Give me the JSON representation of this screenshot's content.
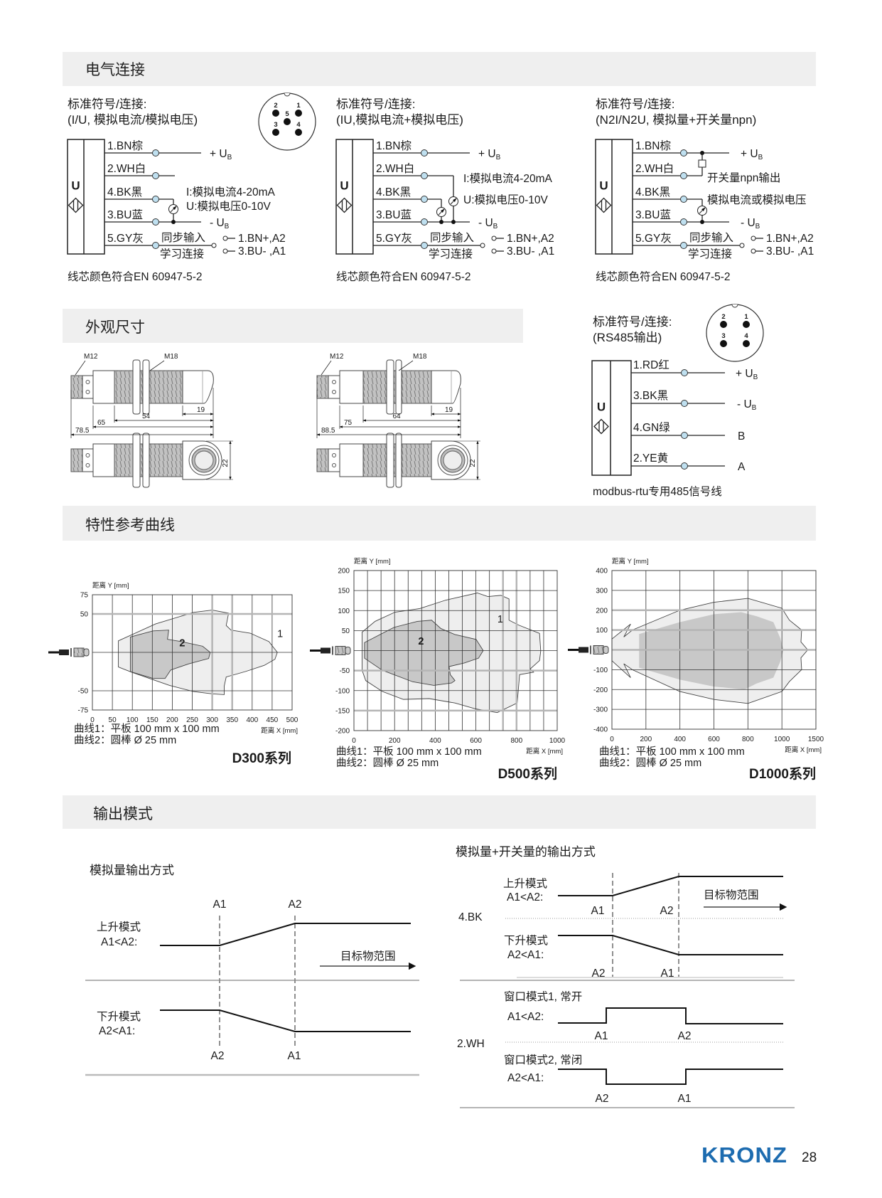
{
  "sections": {
    "electrical": "电气连接",
    "dimensions": "外观尺寸",
    "curves": "特性参考曲线",
    "output": "输出模式"
  },
  "ub": {
    "plus": "+ U",
    "minus": "- U",
    "sub": "B"
  },
  "wiring": [
    {
      "title1": "标准符号/连接:",
      "title2": "(I/U, 模拟电流/模拟电压)",
      "symbol": "U",
      "wires": [
        "1.BN棕",
        "2.WH白",
        "4.BK黑",
        "3.BU蓝",
        "5.GY灰"
      ],
      "notes": [
        "I:模拟电流4-20mA",
        "U:模拟电压0-10V"
      ],
      "sync": "同步输入",
      "teach": "学习连接",
      "teach_options": [
        "1.BN+,A2",
        "3.BU- ,A1"
      ],
      "footer": "线芯颜色符合EN 60947-5-2",
      "connector_pins": [
        "1",
        "2",
        "3",
        "4",
        "5"
      ]
    },
    {
      "title1": "标准符号/连接:",
      "title2": "(IU,模拟电流+模拟电压)",
      "symbol": "U",
      "wires": [
        "1.BN棕",
        "2.WH白",
        "4.BK黑",
        "3.BU蓝",
        "5.GY灰"
      ],
      "notes": [
        "I:模拟电流4-20mA",
        "U:模拟电压0-10V"
      ],
      "sync": "同步输入",
      "teach": "学习连接",
      "teach_options": [
        "1.BN+,A2",
        "3.BU- ,A1"
      ],
      "footer": "线芯颜色符合EN 60947-5-2"
    },
    {
      "title1": "标准符号/连接:",
      "title2": "(N2I/N2U, 模拟量+开关量npn)",
      "symbol": "U",
      "wires": [
        "1.BN棕",
        "2.WH白",
        "4.BK黑",
        "3.BU蓝",
        "5.GY灰"
      ],
      "notes": [
        "开关量npn输出",
        "模拟电流或模拟电压"
      ],
      "sync": "同步输入",
      "teach": "学习连接",
      "teach_options": [
        "1.BN+,A2",
        "3.BU- ,A1"
      ],
      "footer": "线芯颜色符合EN 60947-5-2"
    }
  ],
  "rs485": {
    "title1": "标准符号/连接:",
    "title2": "(RS485输出)",
    "symbol": "U",
    "wires": [
      "1.RD红",
      "3.BK黑",
      "4.GN绿",
      "2.YE黄"
    ],
    "ends": [
      "B",
      "A"
    ],
    "footer": "modbus-rtu专用485信号线",
    "connector_pins": [
      "1",
      "2",
      "3",
      "4"
    ]
  },
  "dimensions": [
    {
      "m12": "M12",
      "m18": "M18",
      "dims": [
        "19",
        "54",
        "65",
        "78.5"
      ],
      "width": "22"
    },
    {
      "m12": "M12",
      "m18": "M18",
      "dims": [
        "19",
        "64",
        "75",
        "88.5"
      ],
      "width": "22"
    }
  ],
  "chart_data": [
    {
      "type": "area",
      "title": "D300系列",
      "xlabel": "距离 X [mm]",
      "ylabel": "距离 Y [mm]",
      "xlim": [
        0,
        500
      ],
      "ylim": [
        -75,
        75
      ],
      "x_ticks": [
        0,
        50,
        100,
        150,
        200,
        250,
        300,
        350,
        400,
        450,
        500
      ],
      "y_ticks": [
        75,
        50,
        -50,
        -75
      ],
      "grid": true,
      "notes": [
        "曲线1：平板 100 mm x 100 mm",
        "曲线2：圆棒 Ø 25 mm"
      ],
      "series": [
        {
          "name": "1",
          "points": [
            [
              65,
              15
            ],
            [
              158,
              37
            ],
            [
              253,
              52
            ],
            [
              300,
              55
            ],
            [
              341,
              51
            ],
            [
              335,
              35
            ],
            [
              347,
              29
            ],
            [
              395,
              25
            ],
            [
              442,
              14
            ],
            [
              463,
              0
            ],
            [
              457,
              -9
            ],
            [
              430,
              -17
            ],
            [
              383,
              -25
            ],
            [
              335,
              -32
            ],
            [
              330,
              -44
            ],
            [
              330,
              -55
            ],
            [
              300,
              -54
            ],
            [
              253,
              -51
            ],
            [
              193,
              -43
            ],
            [
              99,
              -26
            ],
            [
              65,
              -19
            ]
          ]
        },
        {
          "name": "2",
          "points": [
            [
              95,
              20
            ],
            [
              152,
              28
            ],
            [
              191,
              29
            ],
            [
              188,
              17
            ],
            [
              223,
              14
            ],
            [
              276,
              8
            ],
            [
              295,
              0
            ],
            [
              291,
              -8
            ],
            [
              241,
              -15
            ],
            [
              196,
              -23
            ],
            [
              182,
              -34
            ],
            [
              152,
              -34
            ],
            [
              95,
              -25
            ]
          ]
        }
      ]
    },
    {
      "type": "area",
      "title": "D500系列",
      "xlabel": "距离 X [mm]",
      "ylabel": "距离 Y [mm]",
      "xlim": [
        0,
        1000
      ],
      "ylim": [
        -200,
        200
      ],
      "x_ticks": [
        0,
        200,
        400,
        600,
        800,
        1000
      ],
      "y_ticks": [
        200,
        150,
        100,
        50,
        -50,
        -100,
        -150,
        -200
      ],
      "grid": true,
      "notes": [
        "曲线1：平板 100 mm x 100 mm",
        "曲线2：圆棒 Ø 25 mm"
      ],
      "series": [
        {
          "name": "1",
          "points": [
            [
              40,
              46
            ],
            [
              104,
              73
            ],
            [
              202,
              96
            ],
            [
              324,
              105
            ],
            [
              451,
              126
            ],
            [
              607,
              144
            ],
            [
              659,
              135
            ],
            [
              723,
              138
            ],
            [
              763,
              129
            ],
            [
              763,
              76
            ],
            [
              809,
              64
            ],
            [
              913,
              43
            ],
            [
              919,
              -1
            ],
            [
              913,
              -25
            ],
            [
              867,
              -46
            ],
            [
              884,
              -54
            ],
            [
              815,
              -60
            ],
            [
              809,
              -96
            ],
            [
              803,
              -131
            ],
            [
              705,
              -155
            ],
            [
              601,
              -146
            ],
            [
              497,
              -131
            ],
            [
              370,
              -120
            ],
            [
              243,
              -122
            ],
            [
              139,
              -102
            ],
            [
              58,
              -75
            ],
            [
              40,
              -49
            ]
          ]
        },
        {
          "name": "2",
          "points": [
            [
              52,
              20
            ],
            [
              197,
              58
            ],
            [
              312,
              73
            ],
            [
              382,
              76
            ],
            [
              428,
              55
            ],
            [
              497,
              40
            ],
            [
              601,
              28
            ],
            [
              636,
              0
            ],
            [
              613,
              -19
            ],
            [
              543,
              -31
            ],
            [
              468,
              -40
            ],
            [
              474,
              -60
            ],
            [
              497,
              -75
            ],
            [
              480,
              -81
            ],
            [
              393,
              -87
            ],
            [
              289,
              -78
            ],
            [
              139,
              -49
            ],
            [
              52,
              -19
            ]
          ]
        }
      ]
    },
    {
      "type": "area",
      "title": "D1000系列",
      "xlabel": "距离 X [mm]",
      "ylabel": "距离 Y [mm]",
      "xlim": [
        0,
        1500
      ],
      "ylim": [
        -400,
        400
      ],
      "x_ticks": [
        0,
        200,
        400,
        600,
        800,
        1000,
        1500
      ],
      "y_ticks": [
        400,
        300,
        200,
        100,
        -100,
        -200,
        -300,
        -400
      ],
      "grid": true,
      "notes": [
        "曲线1：平板 100 mm x 100 mm",
        "曲线2：圆棒 Ø 25 mm"
      ],
      "series": [
        {
          "points": [
            [
              0,
              55
            ],
            [
              110,
              130
            ],
            [
              70,
              65
            ],
            [
              120,
              100
            ],
            [
              400,
              200
            ],
            [
              600,
              240
            ],
            [
              800,
              260
            ],
            [
              1000,
              210
            ],
            [
              1110,
              150
            ],
            [
              1290,
              100
            ],
            [
              1280,
              40
            ],
            [
              1380,
              0
            ],
            [
              1280,
              -40
            ],
            [
              1290,
              -100
            ],
            [
              1110,
              -160
            ],
            [
              1000,
              -210
            ],
            [
              800,
              -270
            ],
            [
              600,
              -250
            ],
            [
              400,
              -210
            ],
            [
              120,
              -100
            ],
            [
              70,
              -70
            ],
            [
              110,
              -140
            ],
            [
              0,
              -55
            ]
          ]
        },
        {
          "points": [
            [
              160,
              80
            ],
            [
              400,
              140
            ],
            [
              600,
              180
            ],
            [
              760,
              190
            ],
            [
              850,
              170
            ],
            [
              950,
              140
            ],
            [
              990,
              60
            ],
            [
              1024,
              0
            ],
            [
              990,
              -60
            ],
            [
              950,
              -140
            ],
            [
              850,
              -170
            ],
            [
              780,
              -200
            ],
            [
              600,
              -185
            ],
            [
              400,
              -150
            ],
            [
              160,
              -90
            ]
          ]
        }
      ]
    }
  ],
  "output_modes": {
    "analog": {
      "title": "模拟量输出方式",
      "rising": {
        "label": "上升模式",
        "cond": "A1<A2:",
        "marks": [
          "A1",
          "A2"
        ]
      },
      "falling": {
        "label": "下升模式",
        "cond": "A2<A1:",
        "marks": [
          "A2",
          "A1"
        ]
      },
      "range": "目标物范围"
    },
    "combined": {
      "title": "模拟量+开关量的输出方式",
      "bk": "4.BK",
      "wh": "2.WH",
      "rising": {
        "label": "上升模式",
        "cond": "A1<A2:",
        "marks": [
          "A1",
          "A2"
        ]
      },
      "falling": {
        "label": "下升模式",
        "cond": "A2<A1:",
        "marks": [
          "A2",
          "A1"
        ]
      },
      "range": "目标物范围",
      "window1": {
        "label": "窗口模式1, 常开",
        "cond": "A1<A2:",
        "marks": [
          "A1",
          "A2"
        ]
      },
      "window2": {
        "label": "窗口模式2, 常闭",
        "cond": "A2<A1:",
        "marks": [
          "A2",
          "A1"
        ]
      }
    }
  },
  "footer": {
    "brand": "KRONZ",
    "page": "28"
  },
  "colors": {
    "brand": "#1d6cb0",
    "section_bar": "#efefef",
    "curve1_fill": "#eeeeee",
    "curve2_fill": "#c8c8c8",
    "terminal": "#bfe0f0"
  }
}
